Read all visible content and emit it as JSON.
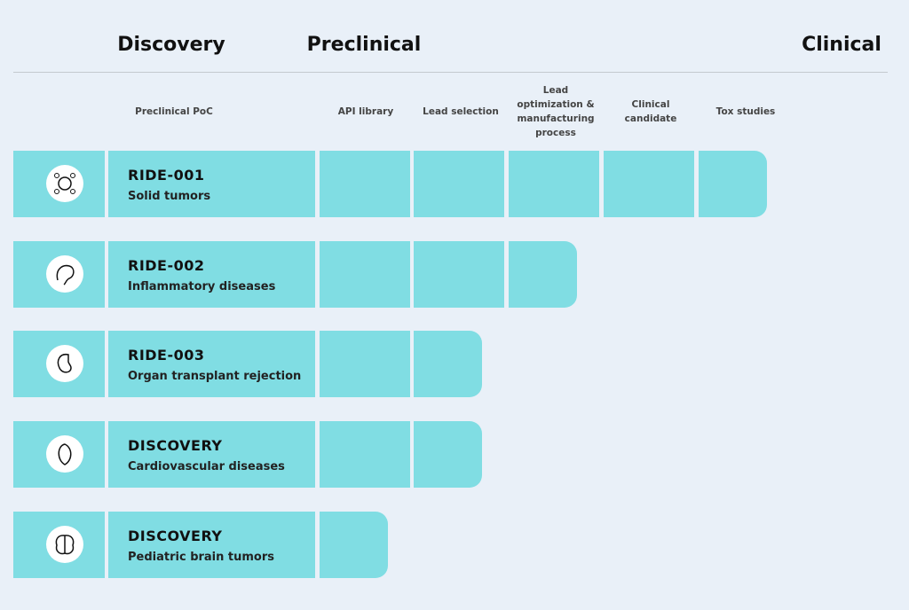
{
  "stages": [
    {
      "label": "Discovery"
    },
    {
      "label": "Preclinical"
    },
    {
      "label": "Clinical"
    }
  ],
  "columns": [
    "Preclinical PoC",
    "API library",
    "Lead selection",
    "Lead optimization & manufacturing process",
    "Clinical candidate",
    "Tox studies"
  ],
  "programs": [
    {
      "name": "RIDE-001",
      "indication": "Solid tumors",
      "progress": 5
    },
    {
      "name": "RIDE-002",
      "indication": "Inflammatory diseases",
      "progress": 3
    },
    {
      "name": "RIDE-003",
      "indication": "Organ transplant rejection",
      "progress": 2
    },
    {
      "name": "DISCOVERY",
      "indication": "Cardiovascular diseases",
      "progress": 2
    },
    {
      "name": "DISCOVERY",
      "indication": "Pediatric brain tumors",
      "progress": 1
    }
  ]
}
